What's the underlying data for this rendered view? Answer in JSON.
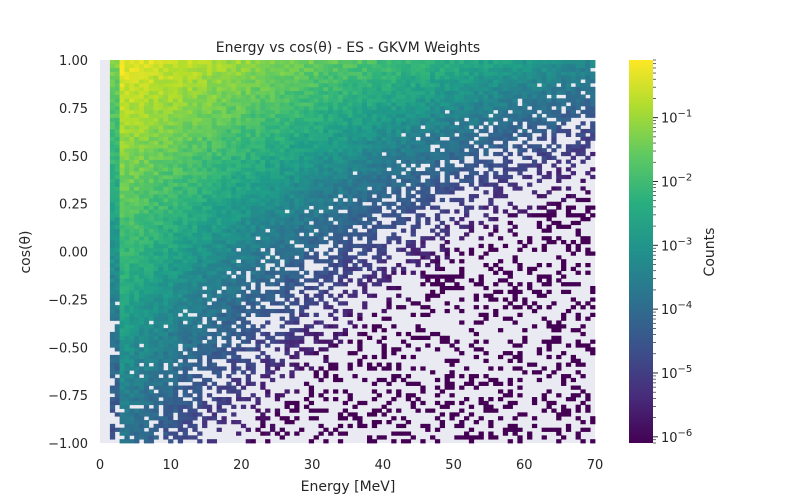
{
  "chart_data": {
    "type": "heatmap",
    "title": "Energy vs cos(θ) - ES - GKVM Weights",
    "xlabel": "Energy [MeV]",
    "ylabel": "cos(θ)",
    "xlim": [
      0,
      70
    ],
    "ylim": [
      -1.0,
      1.0
    ],
    "x_ticks": [
      "0",
      "10",
      "20",
      "30",
      "40",
      "50",
      "60",
      "70"
    ],
    "y_ticks": [
      "1.00",
      "0.75",
      "0.50",
      "0.25",
      "0.00",
      "−0.25",
      "−0.50",
      "−0.75",
      "−1.00"
    ],
    "colorbar": {
      "label": "Counts",
      "scale": "log",
      "min": 8e-07,
      "max": 0.8,
      "ticks": [
        {
          "base": "10",
          "exp": "−1",
          "value": 0.1
        },
        {
          "base": "10",
          "exp": "−2",
          "value": 0.01
        },
        {
          "base": "10",
          "exp": "−3",
          "value": 0.001
        },
        {
          "base": "10",
          "exp": "−4",
          "value": 0.0001
        },
        {
          "base": "10",
          "exp": "−5",
          "value": 1e-05
        },
        {
          "base": "10",
          "exp": "−6",
          "value": 1e-06
        }
      ],
      "colormap": "viridis"
    },
    "grid": false,
    "axes_background": "#eaeaf2",
    "bins": {
      "x": 100,
      "y": 100
    },
    "x_start": 1.4,
    "density_description": "log10 counts: ~-0.3 near E≈3 MeV, cos≈1; decreases with energy and with decreasing cos(θ); empty bins (white) increase toward high energy / low cos(θ)"
  }
}
